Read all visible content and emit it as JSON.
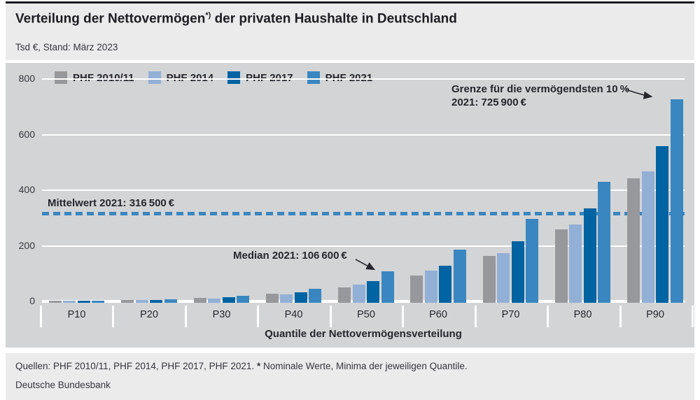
{
  "header": {
    "title_main": "Verteilung der Nettovermögen",
    "title_sup": "*)",
    "title_tail": " der privaten Haushalte in Deutschland",
    "subtitle": "Tsd €, Stand: März 2023"
  },
  "colors": {
    "phf_2010_11": "#97989c",
    "phf_2014": "#92afd6",
    "phf_2017": "#0063a2",
    "phf_2021": "#3a86c0",
    "plot_background": "#d2d4d6",
    "panel_background": "#ebebec",
    "gridline": "#ffffff",
    "text": "#26262c",
    "reference_line": "#3a86c0"
  },
  "chart_data": {
    "type": "bar",
    "title": "Verteilung der Nettovermögen der privaten Haushalte in Deutschland",
    "unit": "Tsd €",
    "xlabel": "Quantile der Nettovermögensverteilung",
    "ylabel": "",
    "ylim": [
      0,
      800
    ],
    "yticks": [
      0,
      200,
      400,
      600,
      800
    ],
    "grid": true,
    "legend_position": "top-left",
    "categories": [
      "P10",
      "P20",
      "P30",
      "P40",
      "P50",
      "P60",
      "P70",
      "P80",
      "P90"
    ],
    "series": [
      {
        "name": "PHF 2010/11",
        "color": "#97989c",
        "values": [
          0.3,
          3,
          11,
          26,
          48,
          93,
          162,
          259,
          442
        ]
      },
      {
        "name": "PHF 2014",
        "color": "#92afd6",
        "values": [
          0.4,
          3.5,
          9.5,
          24,
          58,
          109,
          173,
          275,
          467
        ]
      },
      {
        "name": "PHF 2017",
        "color": "#0063a2",
        "values": [
          0.7,
          5,
          14,
          31,
          71,
          128,
          216,
          333,
          556
        ]
      },
      {
        "name": "PHF 2021",
        "color": "#3a86c0",
        "values": [
          1.5,
          7,
          20,
          43,
          106.6,
          184,
          296,
          428,
          725.9
        ]
      }
    ],
    "reference_lines": [
      {
        "label": "Mittelwert 2021: 316 500 €",
        "value": 316.5,
        "style": "dashed",
        "color": "#3a86c0"
      }
    ],
    "annotations": [
      {
        "line1": "Grenze für die vermögendsten 10 %",
        "line2": "2021: 725 900 €",
        "target_category": "P90",
        "target_series": "PHF 2021",
        "value": 725.9
      },
      {
        "line1": "Median 2021: 106 600 €",
        "target_category": "P50",
        "target_series": "PHF 2021",
        "value": 106.6
      }
    ]
  },
  "footer": {
    "sources": "Quellen: PHF 2010/11, PHF 2014, PHF 2017, PHF 2021.",
    "note_marker": "*",
    "note": "Nominale Werte, Minima der jeweiligen Quantile.",
    "publisher": "Deutsche Bundesbank"
  }
}
